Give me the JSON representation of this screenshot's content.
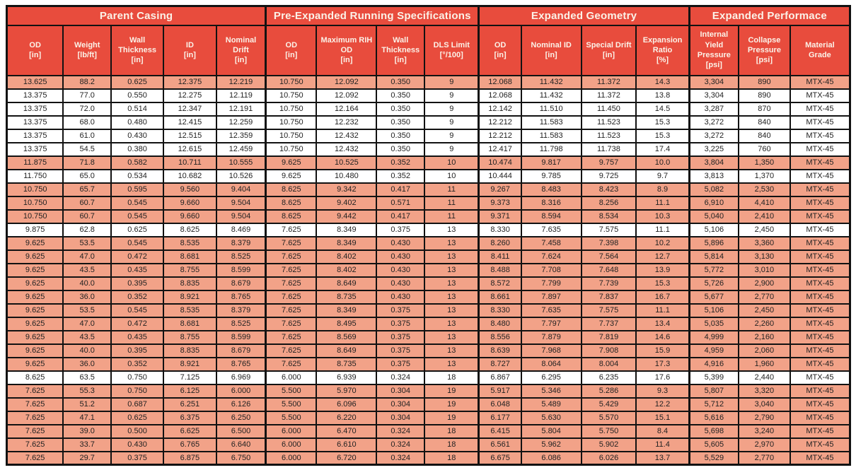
{
  "colors": {
    "accent": "#e84c3d",
    "row_shaded": "#f2a288",
    "row_plain": "#ffffff",
    "border": "#121212",
    "header_text": "#fbf2e8",
    "cell_text": "#222222"
  },
  "groups": [
    {
      "label": "Parent Casing",
      "span": 5
    },
    {
      "label": "Pre-Expanded Running Specifications",
      "span": 4
    },
    {
      "label": "Expanded Geometry",
      "span": 4
    },
    {
      "label": "Expanded Performace",
      "span": 3
    }
  ],
  "columns": [
    {
      "label": "OD",
      "unit": "[in]"
    },
    {
      "label": "Weight",
      "unit": "[lb/ft]"
    },
    {
      "label": "Wall Thickness",
      "unit": "[in]"
    },
    {
      "label": "ID",
      "unit": "[in]"
    },
    {
      "label": "Nominal Drift",
      "unit": "[in]"
    },
    {
      "label": "OD",
      "unit": "[in]"
    },
    {
      "label": "Maximum RIH OD",
      "unit": "[in]"
    },
    {
      "label": "Wall Thickness",
      "unit": "[in]"
    },
    {
      "label": "DLS Limit",
      "unit": "[°/100]"
    },
    {
      "label": "OD",
      "unit": "[in]"
    },
    {
      "label": "Nominal ID",
      "unit": "[in]"
    },
    {
      "label": "Special Drift",
      "unit": "[in]"
    },
    {
      "label": "Expansion Ratio",
      "unit": "[%]"
    },
    {
      "label": "Internal Yield Pressure",
      "unit": "[psi]"
    },
    {
      "label": "Collapse Pressure",
      "unit": "[psi]"
    },
    {
      "label": "Material Grade",
      "unit": ""
    }
  ],
  "rows": [
    [
      "13.625",
      "88.2",
      "0.625",
      "12.375",
      "12.219",
      "10.750",
      "12.092",
      "0.350",
      "9",
      "12.068",
      "11.432",
      "11.372",
      "14.3",
      "3,304",
      "890",
      "MTX-45"
    ],
    [
      "13.375",
      "77.0",
      "0.550",
      "12.275",
      "12.119",
      "10.750",
      "12.092",
      "0.350",
      "9",
      "12.068",
      "11.432",
      "11.372",
      "13.8",
      "3,304",
      "890",
      "MTX-45"
    ],
    [
      "13.375",
      "72.0",
      "0.514",
      "12.347",
      "12.191",
      "10.750",
      "12.164",
      "0.350",
      "9",
      "12.142",
      "11.510",
      "11.450",
      "14.5",
      "3,287",
      "870",
      "MTX-45"
    ],
    [
      "13.375",
      "68.0",
      "0.480",
      "12.415",
      "12.259",
      "10.750",
      "12.232",
      "0.350",
      "9",
      "12.212",
      "11.583",
      "11.523",
      "15.3",
      "3,272",
      "840",
      "MTX-45"
    ],
    [
      "13.375",
      "61.0",
      "0.430",
      "12.515",
      "12.359",
      "10.750",
      "12.432",
      "0.350",
      "9",
      "12.212",
      "11.583",
      "11.523",
      "15.3",
      "3,272",
      "840",
      "MTX-45"
    ],
    [
      "13.375",
      "54.5",
      "0.380",
      "12.615",
      "12.459",
      "10.750",
      "12.432",
      "0.350",
      "9",
      "12.417",
      "11.798",
      "11.738",
      "17.4",
      "3,225",
      "760",
      "MTX-45"
    ],
    [
      "11.875",
      "71.8",
      "0.582",
      "10.711",
      "10.555",
      "9.625",
      "10.525",
      "0.352",
      "10",
      "10.474",
      "9.817",
      "9.757",
      "10.0",
      "3,804",
      "1,350",
      "MTX-45"
    ],
    [
      "11.750",
      "65.0",
      "0.534",
      "10.682",
      "10.526",
      "9.625",
      "10.480",
      "0.352",
      "10",
      "10.444",
      "9.785",
      "9.725",
      "9.7",
      "3,813",
      "1,370",
      "MTX-45"
    ],
    [
      "10.750",
      "65.7",
      "0.595",
      "9.560",
      "9.404",
      "8.625",
      "9.342",
      "0.417",
      "11",
      "9.267",
      "8.483",
      "8.423",
      "8.9",
      "5,082",
      "2,530",
      "MTX-45"
    ],
    [
      "10.750",
      "60.7",
      "0.545",
      "9.660",
      "9.504",
      "8.625",
      "9.402",
      "0.571",
      "11",
      "9.373",
      "8.316",
      "8.256",
      "11.1",
      "6,910",
      "4,410",
      "MTX-45"
    ],
    [
      "10.750",
      "60.7",
      "0.545",
      "9.660",
      "9.504",
      "8.625",
      "9.442",
      "0.417",
      "11",
      "9.371",
      "8.594",
      "8.534",
      "10.3",
      "5,040",
      "2,410",
      "MTX-45"
    ],
    [
      "9.875",
      "62.8",
      "0.625",
      "8.625",
      "8.469",
      "7.625",
      "8.349",
      "0.375",
      "13",
      "8.330",
      "7.635",
      "7.575",
      "11.1",
      "5,106",
      "2,450",
      "MTX-45"
    ],
    [
      "9.625",
      "53.5",
      "0.545",
      "8.535",
      "8.379",
      "7.625",
      "8.349",
      "0.430",
      "13",
      "8.260",
      "7.458",
      "7.398",
      "10.2",
      "5,896",
      "3,360",
      "MTX-45"
    ],
    [
      "9.625",
      "47.0",
      "0.472",
      "8.681",
      "8.525",
      "7.625",
      "8.402",
      "0.430",
      "13",
      "8.411",
      "7.624",
      "7.564",
      "12.7",
      "5,814",
      "3,130",
      "MTX-45"
    ],
    [
      "9.625",
      "43.5",
      "0.435",
      "8.755",
      "8.599",
      "7.625",
      "8.402",
      "0.430",
      "13",
      "8.488",
      "7.708",
      "7.648",
      "13.9",
      "5,772",
      "3,010",
      "MTX-45"
    ],
    [
      "9.625",
      "40.0",
      "0.395",
      "8.835",
      "8.679",
      "7.625",
      "8.649",
      "0.430",
      "13",
      "8.572",
      "7.799",
      "7.739",
      "15.3",
      "5,726",
      "2,900",
      "MTX-45"
    ],
    [
      "9.625",
      "36.0",
      "0.352",
      "8.921",
      "8.765",
      "7.625",
      "8.735",
      "0.430",
      "13",
      "8.661",
      "7.897",
      "7.837",
      "16.7",
      "5,677",
      "2,770",
      "MTX-45"
    ],
    [
      "9.625",
      "53.5",
      "0.545",
      "8.535",
      "8.379",
      "7.625",
      "8.349",
      "0.375",
      "13",
      "8.330",
      "7.635",
      "7.575",
      "11.1",
      "5,106",
      "2,450",
      "MTX-45"
    ],
    [
      "9.625",
      "47.0",
      "0.472",
      "8.681",
      "8.525",
      "7.625",
      "8.495",
      "0.375",
      "13",
      "8.480",
      "7.797",
      "7.737",
      "13.4",
      "5,035",
      "2,260",
      "MTX-45"
    ],
    [
      "9.625",
      "43.5",
      "0.435",
      "8.755",
      "8.599",
      "7.625",
      "8.569",
      "0.375",
      "13",
      "8.556",
      "7.879",
      "7.819",
      "14.6",
      "4,999",
      "2,160",
      "MTX-45"
    ],
    [
      "9.625",
      "40.0",
      "0.395",
      "8.835",
      "8.679",
      "7.625",
      "8.649",
      "0.375",
      "13",
      "8.639",
      "7.968",
      "7.908",
      "15.9",
      "4,959",
      "2,060",
      "MTX-45"
    ],
    [
      "9.625",
      "36.0",
      "0.352",
      "8.921",
      "8.765",
      "7.625",
      "8.735",
      "0.375",
      "13",
      "8.727",
      "8.064",
      "8.004",
      "17.3",
      "4,916",
      "1,960",
      "MTX-45"
    ],
    [
      "8.625",
      "63.5",
      "0.750",
      "7.125",
      "6.969",
      "6.000",
      "6.939",
      "0.324",
      "18",
      "6.867",
      "6.295",
      "6.235",
      "17.6",
      "5,399",
      "2,440",
      "MTX-45"
    ],
    [
      "7.625",
      "55.3",
      "0.750",
      "6.125",
      "6.000",
      "5.500",
      "5.970",
      "0.304",
      "19",
      "5.917",
      "5.346",
      "5.286",
      "9.3",
      "5,807",
      "3,320",
      "MTX-45"
    ],
    [
      "7.625",
      "51.2",
      "0.687",
      "6.251",
      "6.126",
      "5.500",
      "6.096",
      "0.304",
      "19",
      "6.048",
      "5.489",
      "5.429",
      "12.2",
      "5,712",
      "3,040",
      "MTX-45"
    ],
    [
      "7.625",
      "47.1",
      "0.625",
      "6.375",
      "6.250",
      "5.500",
      "6.220",
      "0.304",
      "19",
      "6.177",
      "5.630",
      "5.570",
      "15.1",
      "5,616",
      "2,790",
      "MTX-45"
    ],
    [
      "7.625",
      "39.0",
      "0.500",
      "6.625",
      "6.500",
      "6.000",
      "6.470",
      "0.324",
      "18",
      "6.415",
      "5.804",
      "5.750",
      "8.4",
      "5,698",
      "3,240",
      "MTX-45"
    ],
    [
      "7.625",
      "33.7",
      "0.430",
      "6.765",
      "6.640",
      "6.000",
      "6.610",
      "0.324",
      "18",
      "6.561",
      "5.962",
      "5.902",
      "11.4",
      "5,605",
      "2,970",
      "MTX-45"
    ],
    [
      "7.625",
      "29.7",
      "0.375",
      "6.875",
      "6.750",
      "6.000",
      "6.720",
      "0.324",
      "18",
      "6.675",
      "6.086",
      "6.026",
      "13.7",
      "5,529",
      "2,770",
      "MTX-45"
    ]
  ],
  "row_shading": [
    true,
    false,
    false,
    false,
    false,
    false,
    true,
    false,
    true,
    true,
    true,
    false,
    true,
    true,
    true,
    true,
    true,
    true,
    true,
    true,
    true,
    true,
    false,
    true,
    true,
    true,
    true,
    true,
    true
  ],
  "group_start_columns": [
    5,
    9,
    13
  ]
}
